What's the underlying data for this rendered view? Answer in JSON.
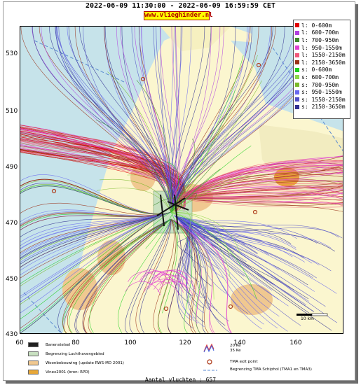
{
  "header": {
    "title": "2022-06-09 11:30:00 - 2022-06-09 16:59:59 CET",
    "site": "www.vlieghinder.nl"
  },
  "axes": {
    "x_ticks": [
      "60",
      "80",
      "100",
      "120",
      "140",
      "160"
    ],
    "y_ticks": [
      "530",
      "510",
      "490",
      "470",
      "450",
      "430"
    ]
  },
  "legend": {
    "items": [
      {
        "label": "l: 0-600m",
        "color": "#e00000"
      },
      {
        "label": "l: 600-700m",
        "color": "#b040e0"
      },
      {
        "label": "l: 700-950m",
        "color": "#3c8a2a"
      },
      {
        "label": "l: 950-1550m",
        "color": "#e040d0"
      },
      {
        "label": "l: 1550-2150m",
        "color": "#f05878"
      },
      {
        "label": "l: 2150-3650m",
        "color": "#9a3018"
      },
      {
        "label": "s: 0-600m",
        "color": "#20d020"
      },
      {
        "label": "s: 600-700m",
        "color": "#8cd848"
      },
      {
        "label": "s: 700-950m",
        "color": "#78b828"
      },
      {
        "label": "s: 950-1550m",
        "color": "#6868ee"
      },
      {
        "label": "s: 1550-2150m",
        "color": "#5050c8"
      },
      {
        "label": "s: 2150-3650m",
        "color": "#303090"
      }
    ]
  },
  "map_labels": {
    "scale": "10 km"
  },
  "bottom_legend": {
    "items": [
      {
        "label": "Banenstelsel",
        "color": "#202020"
      },
      {
        "label": "Begrenzing Luchthavengebied",
        "color": "#c8e0c0"
      },
      {
        "label": "Woonbebouwing (update RWS-MD 2001)",
        "color": "#f0c890"
      },
      {
        "label": "Vinex2001 (bron: RPD)",
        "color": "#e8a838"
      }
    ],
    "wind_label_1": "20 Ke",
    "wind_label_2": "35 Ke",
    "tma_exit": "TMA exit point",
    "tma_border": "Begrenzing TMA Schiphol  (TMA1 en TMA3)"
  },
  "footer": {
    "count_label": "Aantal vluchten : 657"
  }
}
